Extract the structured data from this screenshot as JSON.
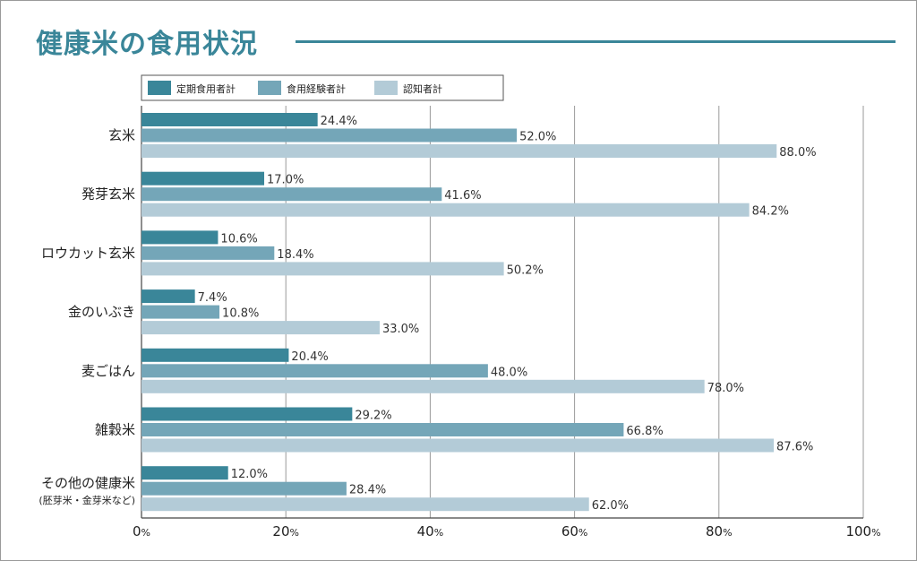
{
  "title": "健康米の食用状況",
  "chart_data": {
    "type": "bar",
    "orientation": "horizontal",
    "categories": [
      "玄米",
      "発芽玄米",
      "ロウカット玄米",
      "金のいぶき",
      "麦ごはん",
      "雑穀米",
      "その他の健康米"
    ],
    "category_sublabels": [
      "",
      "",
      "",
      "",
      "",
      "",
      "(胚芽米・金芽米など)"
    ],
    "series": [
      {
        "name": "定期食用者計",
        "color": "#3a8699",
        "values": [
          24.4,
          17.0,
          10.6,
          7.4,
          20.4,
          29.2,
          12.0
        ],
        "labels": [
          "24.4%",
          "17.0%",
          "10.6%",
          "7.4%",
          "20.4%",
          "29.2%",
          "12.0%"
        ]
      },
      {
        "name": "食用経験者計",
        "color": "#74a6b8",
        "values": [
          52.0,
          41.6,
          18.4,
          10.8,
          48.0,
          66.8,
          28.4
        ],
        "labels": [
          "52.0%",
          "41.6%",
          "18.4%",
          "10.8%",
          "48.0%",
          "66.8%",
          "28.4%"
        ]
      },
      {
        "name": "認知者計",
        "color": "#b3cbd7",
        "values": [
          88.0,
          84.2,
          50.2,
          33.0,
          78.0,
          87.6,
          62.0
        ],
        "labels": [
          "88.0%",
          "84.2%",
          "50.2%",
          "33.0%",
          "78.0%",
          "87.6%",
          "62.0%"
        ]
      }
    ],
    "xlim": [
      0,
      100
    ],
    "xticks": [
      0,
      20,
      40,
      60,
      80,
      100
    ],
    "xtick_unit": "%",
    "grid": true,
    "legend_position": "top-left"
  }
}
